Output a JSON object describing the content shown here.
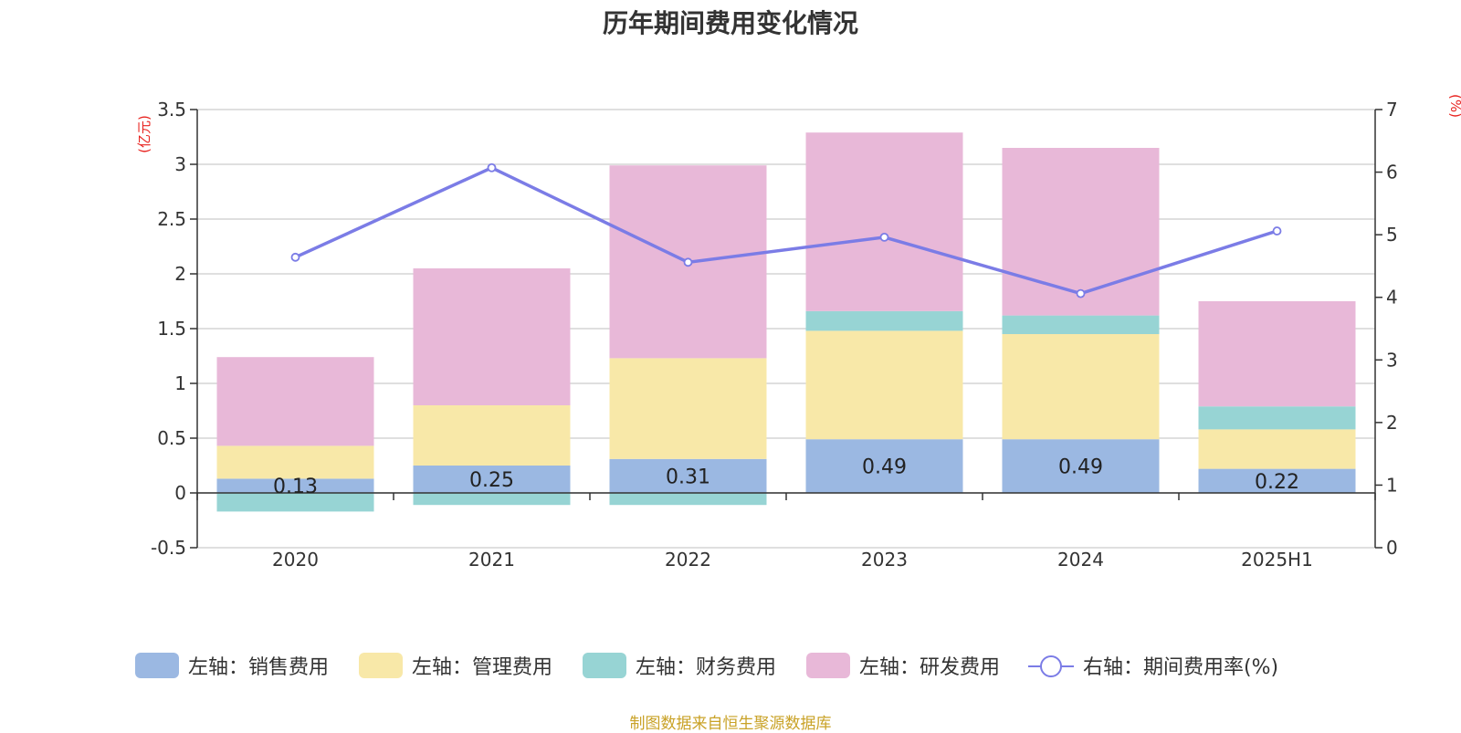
{
  "title": "历年期间费用变化情况",
  "source_note": "制图数据来自恒生聚源数据库",
  "chart_data": {
    "type": "bar",
    "stacked": true,
    "categories": [
      "2020",
      "2021",
      "2022",
      "2023",
      "2024",
      "2025H1"
    ],
    "left_axis": {
      "unit": "(亿元)",
      "ylim": [
        -0.5,
        3.5
      ],
      "ticks": [
        "-0.5",
        "0",
        "0.5",
        "1",
        "1.5",
        "2",
        "2.5",
        "3",
        "3.5"
      ]
    },
    "right_axis": {
      "unit": "(%)",
      "ylim": [
        0,
        7
      ],
      "ticks": [
        "0",
        "1",
        "2",
        "3",
        "4",
        "5",
        "6",
        "7"
      ]
    },
    "grid": true,
    "legend_position": "bottom",
    "series": [
      {
        "name": "左轴：销售费用",
        "axis": "left",
        "type": "bar",
        "color": "#9bb8e2",
        "values": [
          0.13,
          0.25,
          0.31,
          0.49,
          0.49,
          0.22
        ],
        "labels": [
          "0.13",
          "0.25",
          "0.31",
          "0.49",
          "0.49",
          "0.22"
        ]
      },
      {
        "name": "左轴：管理费用",
        "axis": "left",
        "type": "bar",
        "color": "#f8e8a8",
        "values": [
          0.3,
          0.55,
          0.92,
          0.99,
          0.96,
          0.36
        ]
      },
      {
        "name": "左轴：财务费用",
        "axis": "left",
        "type": "bar",
        "color": "#97d4d4",
        "values": [
          -0.17,
          -0.11,
          -0.11,
          0.18,
          0.17,
          0.21
        ]
      },
      {
        "name": "左轴：研发费用",
        "axis": "left",
        "type": "bar",
        "color": "#e8b8d8",
        "values": [
          0.81,
          1.25,
          1.76,
          1.63,
          1.53,
          0.96
        ]
      },
      {
        "name": "右轴：期间费用率(%)",
        "axis": "right",
        "type": "line",
        "color": "#7b7ce6",
        "values": [
          4.64,
          6.07,
          4.56,
          4.96,
          4.06,
          5.06
        ]
      }
    ]
  }
}
